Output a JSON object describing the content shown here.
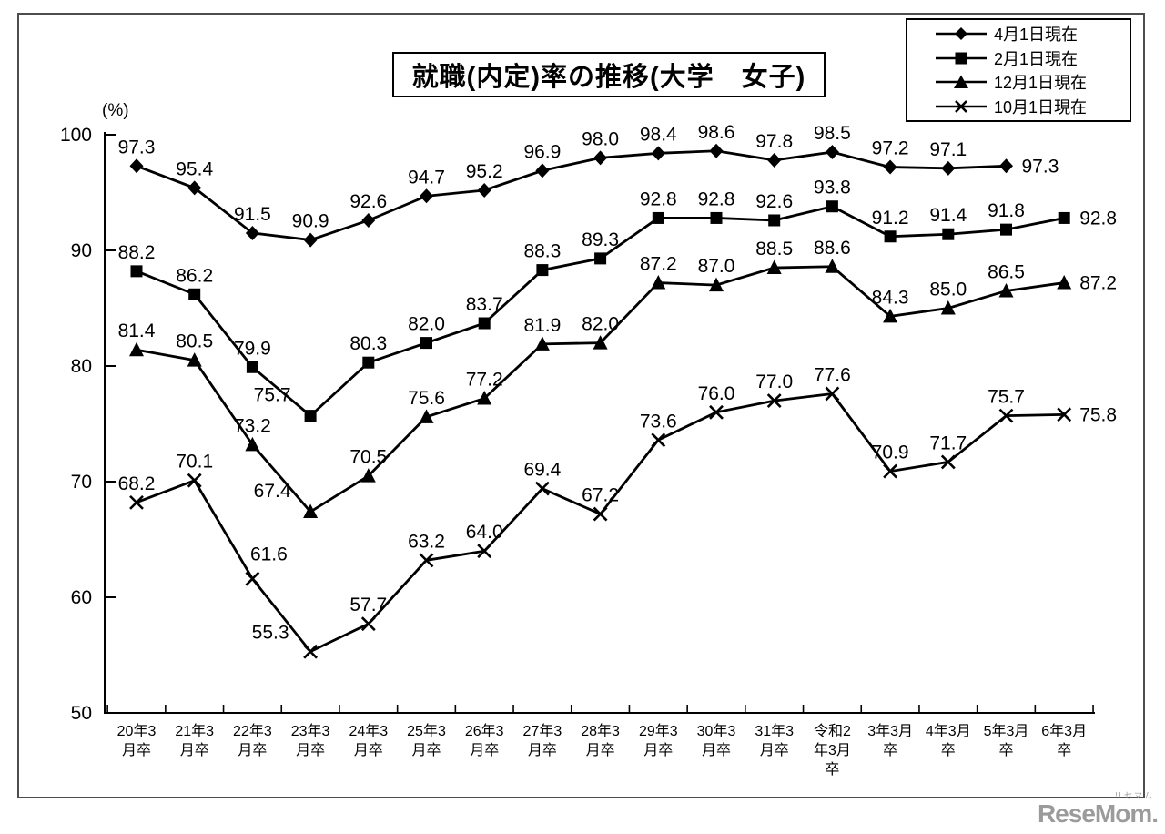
{
  "watermark": "ReseMom.",
  "watermark_kana": "リセマム",
  "colors": {
    "line": "#000000",
    "frame": "#4d4d4d",
    "watermark": "#9b9b9b"
  },
  "chart_data": {
    "type": "line",
    "title": "就職(内定)率の推移(大学　女子)",
    "ylabel": "(%)",
    "xlabel": "",
    "ylim": [
      50,
      100
    ],
    "yticks": [
      50,
      60,
      70,
      80,
      90,
      100
    ],
    "grid": false,
    "legend_position": "top-right",
    "categories": [
      "20年3月卒",
      "21年3月卒",
      "22年3月卒",
      "23年3月卒",
      "24年3月卒",
      "25年3月卒",
      "26年3月卒",
      "27年3月卒",
      "28年3月卒",
      "29年3月卒",
      "30年3月卒",
      "31年3月卒",
      "令和2年3月卒",
      "3年3月卒",
      "4年3月卒",
      "5年3月卒",
      "6年3月卒"
    ],
    "category_display": [
      [
        "20年3",
        "月卒"
      ],
      [
        "21年3",
        "月卒"
      ],
      [
        "22年3",
        "月卒"
      ],
      [
        "23年3",
        "月卒"
      ],
      [
        "24年3",
        "月卒"
      ],
      [
        "25年3",
        "月卒"
      ],
      [
        "26年3",
        "月卒"
      ],
      [
        "27年3",
        "月卒"
      ],
      [
        "28年3",
        "月卒"
      ],
      [
        "29年3",
        "月卒"
      ],
      [
        "30年3",
        "月卒"
      ],
      [
        "31年3",
        "月卒"
      ],
      [
        "令和2",
        "年3月",
        "卒"
      ],
      [
        "3年3月",
        "卒"
      ],
      [
        "4年3月",
        "卒"
      ],
      [
        "5年3月",
        "卒"
      ],
      [
        "6年3月",
        "卒"
      ]
    ],
    "series": [
      {
        "name": "4月1日現在",
        "marker": "diamond",
        "values": [
          97.3,
          95.4,
          91.5,
          90.9,
          92.6,
          94.7,
          95.2,
          96.9,
          98.0,
          98.4,
          98.6,
          97.8,
          98.5,
          97.2,
          97.1,
          97.3,
          null
        ]
      },
      {
        "name": "2月1日現在",
        "marker": "square",
        "values": [
          88.2,
          86.2,
          79.9,
          75.7,
          80.3,
          82.0,
          83.7,
          88.3,
          89.3,
          92.8,
          92.8,
          92.6,
          93.8,
          91.2,
          91.4,
          91.8,
          92.8
        ]
      },
      {
        "name": "12月1日現在",
        "marker": "triangle",
        "values": [
          81.4,
          80.5,
          73.2,
          67.4,
          70.5,
          75.6,
          77.2,
          81.9,
          82.0,
          87.2,
          87.0,
          88.5,
          88.6,
          84.3,
          85.0,
          86.5,
          87.2
        ]
      },
      {
        "name": "10月1日現在",
        "marker": "x",
        "values": [
          68.2,
          70.1,
          61.6,
          55.3,
          57.7,
          63.2,
          64.0,
          69.4,
          67.2,
          73.6,
          76.0,
          77.0,
          77.6,
          70.9,
          71.7,
          75.7,
          75.8
        ]
      }
    ]
  }
}
